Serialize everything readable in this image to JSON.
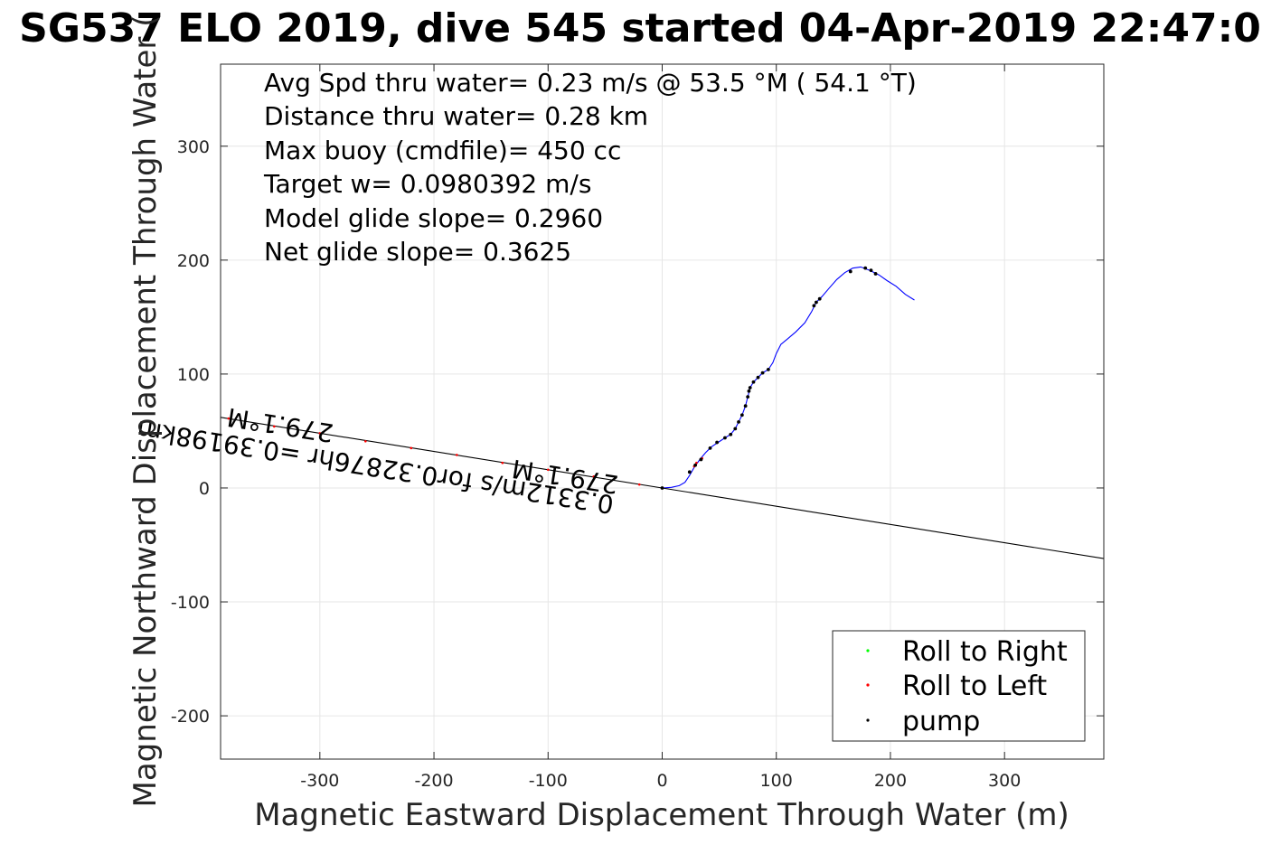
{
  "chart_data": {
    "type": "line",
    "title": "SG537 ELO 2019, dive 545 started 04-Apr-2019 22:47:0",
    "xlabel": "Magnetic Eastward Displacement Through Water (m)",
    "ylabel": "Magnetic Northward Displacement Through Water (",
    "xlim": [
      -387,
      387
    ],
    "ylim": [
      -238,
      372
    ],
    "xticks": [
      -300,
      -200,
      -100,
      0,
      100,
      200,
      300
    ],
    "xtick_labels": [
      "-300",
      "-200",
      "-100",
      "0",
      "100",
      "200",
      "300"
    ],
    "yticks": [
      -200,
      -100,
      0,
      100,
      200,
      300
    ],
    "ytick_labels": [
      "-200",
      "-100",
      "0",
      "100",
      "200",
      "300"
    ],
    "grid": true,
    "legend_position": "bottom-right",
    "annotations": [
      "Avg Spd thru water=  0.23 m/s @  53.5 °M ( 54.1 °T)",
      "Distance thru water=  0.28 km",
      "Max buoy (cmdfile)= 450 cc",
      "Target w= 0.0980392 m/s",
      "Model glide slope= 0.2960",
      "Net glide slope= 0.3625"
    ],
    "current_labels": [
      "0.3312m/s for0.32876hr =0.39198km",
      "279.1°M",
      "279.1°M"
    ],
    "series": [
      {
        "name": "",
        "color": "#0000ff",
        "points": [
          [
            0,
            0
          ],
          [
            8,
            0.5
          ],
          [
            15,
            2
          ],
          [
            20,
            5
          ],
          [
            24,
            11
          ],
          [
            28,
            18
          ],
          [
            33,
            25
          ],
          [
            38,
            31
          ],
          [
            43,
            36
          ],
          [
            49,
            40
          ],
          [
            55,
            44
          ],
          [
            60,
            47
          ],
          [
            64,
            52
          ],
          [
            67,
            58
          ],
          [
            70,
            64
          ],
          [
            73,
            72
          ],
          [
            75,
            80
          ],
          [
            77,
            88
          ],
          [
            80,
            93
          ],
          [
            84,
            97
          ],
          [
            88,
            101
          ],
          [
            93,
            104
          ],
          [
            97,
            110
          ],
          [
            100,
            118
          ],
          [
            104,
            126
          ],
          [
            110,
            131
          ],
          [
            117,
            137
          ],
          [
            125,
            145
          ],
          [
            131,
            155
          ],
          [
            135,
            163
          ],
          [
            140,
            168
          ],
          [
            146,
            175
          ],
          [
            153,
            183
          ],
          [
            160,
            189
          ],
          [
            167,
            193
          ],
          [
            174,
            194
          ],
          [
            182,
            191
          ],
          [
            190,
            187
          ],
          [
            197,
            182
          ],
          [
            205,
            177
          ],
          [
            213,
            170
          ],
          [
            221,
            165
          ]
        ]
      },
      {
        "name": "",
        "color": "#000000",
        "points": [
          [
            0,
            0
          ],
          [
            387,
            -62
          ]
        ]
      },
      {
        "name": "",
        "color": "#000000",
        "points": [
          [
            0,
            0
          ],
          [
            -387,
            62
          ]
        ]
      },
      {
        "name": "Roll to Right",
        "color": "#00ff00",
        "points": []
      },
      {
        "name": "Roll to Left",
        "color": "#ff0000",
        "points": [
          [
            -380,
            61
          ],
          [
            -340,
            54
          ],
          [
            -300,
            48
          ],
          [
            -260,
            41
          ],
          [
            -220,
            35
          ],
          [
            -180,
            29
          ],
          [
            -140,
            22
          ],
          [
            -100,
            16
          ],
          [
            -60,
            10
          ],
          [
            -20,
            3
          ],
          [
            24,
            14
          ],
          [
            30,
            22
          ],
          [
            35,
            26
          ],
          [
            28,
            19
          ]
        ]
      },
      {
        "name": "pump",
        "color": "#000000",
        "points": [
          [
            0,
            0
          ],
          [
            24,
            14
          ],
          [
            29,
            20
          ],
          [
            34,
            25
          ],
          [
            42,
            35
          ],
          [
            48,
            40
          ],
          [
            55,
            44
          ],
          [
            60,
            47
          ],
          [
            64,
            52
          ],
          [
            67,
            58
          ],
          [
            70,
            64
          ],
          [
            73,
            72
          ],
          [
            75,
            80
          ],
          [
            76,
            85
          ],
          [
            77,
            88
          ],
          [
            80,
            93
          ],
          [
            84,
            97
          ],
          [
            88,
            101
          ],
          [
            93,
            104
          ],
          [
            133,
            160
          ],
          [
            135,
            163
          ],
          [
            138,
            166
          ],
          [
            165,
            190
          ],
          [
            178,
            193
          ],
          [
            183,
            191
          ],
          [
            187,
            188
          ]
        ]
      }
    ],
    "legend": [
      "Roll to Right",
      "Roll to Left",
      "pump"
    ]
  }
}
